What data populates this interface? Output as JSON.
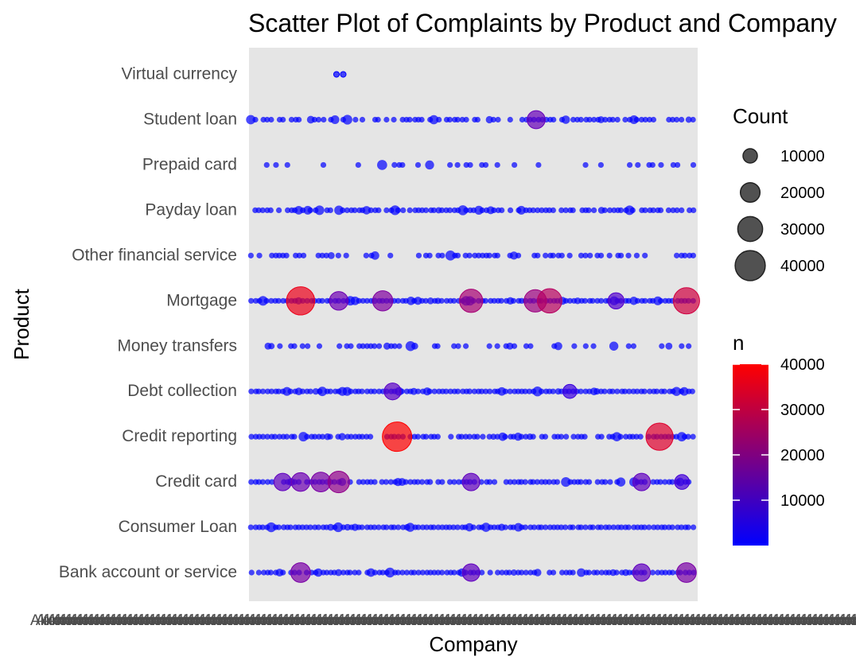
{
  "chart_data": {
    "type": "scatter",
    "title": "Scatter Plot of Complaints by Product and Company",
    "xlabel": "Company",
    "ylabel": "Product",
    "categories_y": [
      "Bank account or service",
      "Consumer Loan",
      "Credit card",
      "Credit reporting",
      "Debt collection",
      "Money transfers",
      "Mortgage",
      "Other financial service",
      "Payday loan",
      "Prepaid card",
      "Student loan",
      "Virtual currency"
    ],
    "x_tick_labels_overlapping": true,
    "x_tick_label_fragment": "Alton",
    "size_legend": {
      "title": "Count",
      "values": [
        10000,
        20000,
        30000,
        40000
      ]
    },
    "color_legend": {
      "title": "n",
      "ticks": [
        10000,
        20000,
        30000,
        40000
      ],
      "low_color": "#0000ff",
      "high_color": "#ff0000",
      "range": [
        1,
        40000
      ]
    },
    "background": "#e5e5e5",
    "grid": false,
    "legend_position": "right",
    "highlighted_points": [
      {
        "product": "Mortgage",
        "company_frac": 0.115,
        "n": 36000
      },
      {
        "product": "Mortgage",
        "company_frac": 0.2,
        "n": 12000
      },
      {
        "product": "Mortgage",
        "company_frac": 0.298,
        "n": 15000
      },
      {
        "product": "Mortgage",
        "company_frac": 0.495,
        "n": 22000
      },
      {
        "product": "Mortgage",
        "company_frac": 0.638,
        "n": 20000
      },
      {
        "product": "Mortgage",
        "company_frac": 0.67,
        "n": 25000
      },
      {
        "product": "Mortgage",
        "company_frac": 0.818,
        "n": 8000
      },
      {
        "product": "Mortgage",
        "company_frac": 0.975,
        "n": 30000
      },
      {
        "product": "Credit reporting",
        "company_frac": 0.33,
        "n": 40000
      },
      {
        "product": "Credit reporting",
        "company_frac": 0.915,
        "n": 33000
      },
      {
        "product": "Credit card",
        "company_frac": 0.075,
        "n": 10000
      },
      {
        "product": "Credit card",
        "company_frac": 0.115,
        "n": 12000
      },
      {
        "product": "Credit card",
        "company_frac": 0.16,
        "n": 14000
      },
      {
        "product": "Credit card",
        "company_frac": 0.2,
        "n": 18000
      },
      {
        "product": "Credit card",
        "company_frac": 0.495,
        "n": 10000
      },
      {
        "product": "Credit card",
        "company_frac": 0.875,
        "n": 10000
      },
      {
        "product": "Credit card",
        "company_frac": 0.965,
        "n": 6000
      },
      {
        "product": "Bank account or service",
        "company_frac": 0.115,
        "n": 14000
      },
      {
        "product": "Bank account or service",
        "company_frac": 0.495,
        "n": 10000
      },
      {
        "product": "Bank account or service",
        "company_frac": 0.875,
        "n": 10000
      },
      {
        "product": "Bank account or service",
        "company_frac": 0.975,
        "n": 14000
      },
      {
        "product": "Student loan",
        "company_frac": 0.64,
        "n": 11000
      },
      {
        "product": "Debt collection",
        "company_frac": 0.32,
        "n": 9000
      },
      {
        "product": "Debt collection",
        "company_frac": 0.715,
        "n": 5000
      },
      {
        "product": "Virtual currency",
        "company_frac": 0.195,
        "n": 1
      },
      {
        "product": "Virtual currency",
        "company_frac": 0.21,
        "n": 1
      }
    ]
  }
}
